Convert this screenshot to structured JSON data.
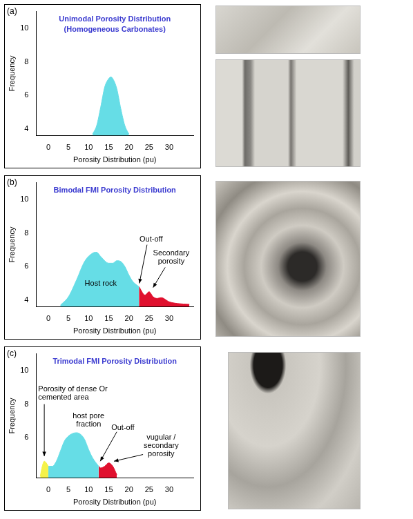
{
  "chart_data": [
    {
      "type": "line",
      "panel_label": "(a)",
      "title": "Unimodal Porosity Distribution",
      "subtitle": "(Homogeneous Carbonates)",
      "x_label": "Porosity Distribution (pu)",
      "y_label": "Frequency",
      "xlim": [
        -3,
        36
      ],
      "xticks": [
        0,
        5,
        10,
        15,
        20,
        25,
        30
      ],
      "ylim": [
        3.6,
        11
      ],
      "yticks": [
        4,
        6,
        8,
        10
      ],
      "grid": false,
      "series": [
        {
          "color": "#66dde6",
          "x": [
            11,
            12,
            13,
            14,
            15,
            15.5,
            16,
            17,
            18,
            19,
            20
          ],
          "values": [
            3.7,
            4.2,
            5.3,
            6.5,
            7.0,
            7.1,
            7.0,
            6.4,
            5.2,
            4.2,
            3.7
          ]
        }
      ]
    },
    {
      "type": "line",
      "panel_label": "(b)",
      "title": "Bimodal FMI Porosity Distribution",
      "x_label": "Porosity Distribution (pu)",
      "y_label": "Frequency",
      "xlim": [
        -3,
        36
      ],
      "xticks": [
        0,
        5,
        10,
        15,
        20,
        25,
        30
      ],
      "ylim": [
        3.6,
        11
      ],
      "yticks": [
        4,
        6,
        8,
        10
      ],
      "grid": false,
      "series": [
        {
          "color": "#66dde6",
          "x": [
            3,
            5,
            7,
            9,
            11,
            12,
            13,
            15,
            16,
            17,
            18,
            19,
            20,
            21,
            22.5
          ],
          "values": [
            3.7,
            4.2,
            5.2,
            6.3,
            6.8,
            6.85,
            6.6,
            6.2,
            6.2,
            6.35,
            6.3,
            6.0,
            5.5,
            5.1,
            4.8
          ]
        },
        {
          "color": "#e0102e",
          "x": [
            22.5,
            24,
            25,
            26,
            27,
            28,
            30,
            32,
            35
          ],
          "values": [
            4.8,
            4.3,
            4.5,
            4.2,
            4.1,
            4.15,
            3.9,
            3.8,
            3.75
          ]
        }
      ],
      "annotations": [
        "Host rock",
        "Out-off",
        "Secondary porosity"
      ]
    },
    {
      "type": "line",
      "panel_label": "(c)",
      "title": "Trimodal FMI Porosity Distribution",
      "x_label": "Porosity Distribution (pu)",
      "y_label": "Frequency",
      "xlim": [
        -3,
        36
      ],
      "xticks": [
        0,
        5,
        10,
        15,
        20,
        25,
        30
      ],
      "ylim": [
        3.6,
        11
      ],
      "yticks": [
        6,
        8,
        10
      ],
      "grid": false,
      "series": [
        {
          "color": "#f5f24a",
          "x": [
            -2,
            -1.5,
            -1,
            -0.5,
            0
          ],
          "values": [
            3.7,
            4.3,
            4.6,
            4.5,
            4.3
          ]
        },
        {
          "color": "#66dde6",
          "x": [
            0,
            1,
            2,
            3,
            4,
            5,
            6,
            7,
            8,
            9,
            10,
            11,
            12.5
          ],
          "values": [
            4.3,
            4.3,
            4.6,
            5.2,
            5.8,
            6.1,
            6.25,
            6.3,
            6.2,
            5.9,
            5.3,
            4.8,
            4.3
          ]
        },
        {
          "color": "#e0102e",
          "x": [
            12.5,
            13,
            14,
            15,
            16,
            17
          ],
          "values": [
            4.3,
            4.2,
            4.3,
            4.5,
            4.3,
            3.8
          ]
        }
      ],
      "annotations": [
        "Porosity of dense Or cemented area",
        "host pore fraction",
        "Out-off",
        "vugular / secondary porosity"
      ]
    }
  ]
}
